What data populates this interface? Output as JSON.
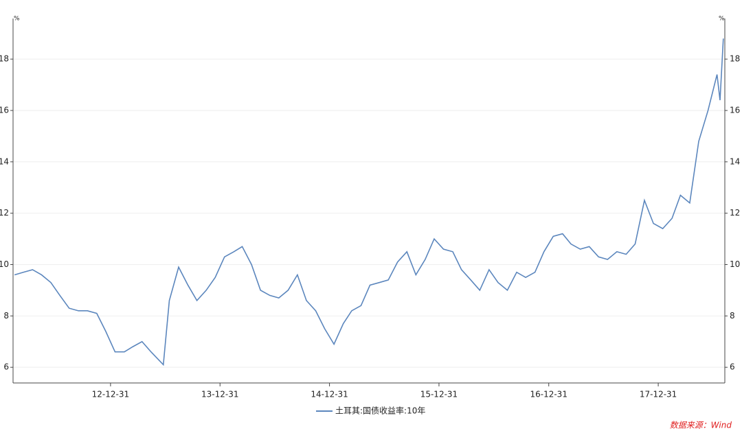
{
  "chart_data": {
    "type": "line",
    "y_label": "%",
    "y2_label": "%",
    "x": [
      "12-02-15",
      "12-03-15",
      "12-04-15",
      "12-05-15",
      "12-06-15",
      "12-07-15",
      "12-08-15",
      "12-09-15",
      "12-10-15",
      "12-11-15",
      "12-12-15",
      "13-01-15",
      "13-02-15",
      "13-03-15",
      "13-04-15",
      "13-05-15",
      "13-06-25",
      "13-07-15",
      "13-08-15",
      "13-09-15",
      "13-10-15",
      "13-11-15",
      "13-12-15",
      "14-01-15",
      "14-02-15",
      "14-03-15",
      "14-04-15",
      "14-05-15",
      "14-06-15",
      "14-07-15",
      "14-08-15",
      "14-09-15",
      "14-10-15",
      "14-11-15",
      "14-12-15",
      "15-01-15",
      "15-02-15",
      "15-03-15",
      "15-04-15",
      "15-05-15",
      "15-06-15",
      "15-07-15",
      "15-08-15",
      "15-09-15",
      "15-10-15",
      "15-11-15",
      "15-12-15",
      "16-01-15",
      "16-02-15",
      "16-03-15",
      "16-04-15",
      "16-05-15",
      "16-06-15",
      "16-07-15",
      "16-08-15",
      "16-09-15",
      "16-10-15",
      "16-11-15",
      "16-12-15",
      "17-01-15",
      "17-02-15",
      "17-03-15",
      "17-04-15",
      "17-05-15",
      "17-06-15",
      "17-07-15",
      "17-08-15",
      "17-09-15",
      "17-10-15",
      "17-11-15",
      "17-12-15",
      "18-01-15",
      "18-02-15",
      "18-03-15",
      "18-04-15",
      "18-05-15",
      "18-06-15",
      "18-07-15",
      "18-07-25",
      "18-08-05"
    ],
    "series": [
      {
        "name": "土耳其:国债收益率:10年",
        "color": "#5b86bd",
        "values": [
          9.6,
          9.7,
          9.8,
          9.6,
          9.3,
          8.8,
          8.3,
          8.2,
          8.2,
          8.1,
          7.4,
          6.6,
          6.6,
          6.8,
          7.0,
          6.6,
          6.1,
          8.6,
          9.9,
          9.2,
          8.6,
          9.0,
          9.5,
          10.3,
          10.5,
          10.7,
          10.0,
          9.0,
          8.8,
          8.7,
          9.0,
          9.6,
          8.6,
          8.2,
          7.5,
          6.9,
          7.7,
          8.2,
          8.4,
          9.2,
          9.3,
          9.4,
          10.1,
          10.5,
          9.6,
          10.2,
          11.0,
          10.6,
          10.5,
          9.8,
          9.4,
          9.0,
          9.8,
          9.3,
          9.0,
          9.7,
          9.5,
          9.7,
          10.5,
          11.1,
          11.2,
          10.8,
          10.6,
          10.7,
          10.3,
          10.2,
          10.5,
          10.4,
          10.8,
          12.5,
          11.6,
          11.4,
          11.8,
          12.7,
          12.4,
          14.8,
          16.0,
          17.4,
          16.4,
          18.8
        ]
      }
    ],
    "xlim": [
      "12-02-10",
      "18-08-10"
    ],
    "xticks": [
      "12-12-31",
      "13-12-31",
      "14-12-31",
      "15-12-31",
      "16-12-31",
      "17-12-31"
    ],
    "ylim": [
      5.39,
      19.58
    ],
    "yticks": [
      6,
      8,
      10,
      12,
      14,
      16,
      18
    ],
    "y2lim": [
      5.39,
      19.58
    ],
    "y2ticks": [
      6,
      8,
      10,
      12,
      14,
      16,
      18
    ],
    "grid": true,
    "source": "数据来源：Wind"
  }
}
